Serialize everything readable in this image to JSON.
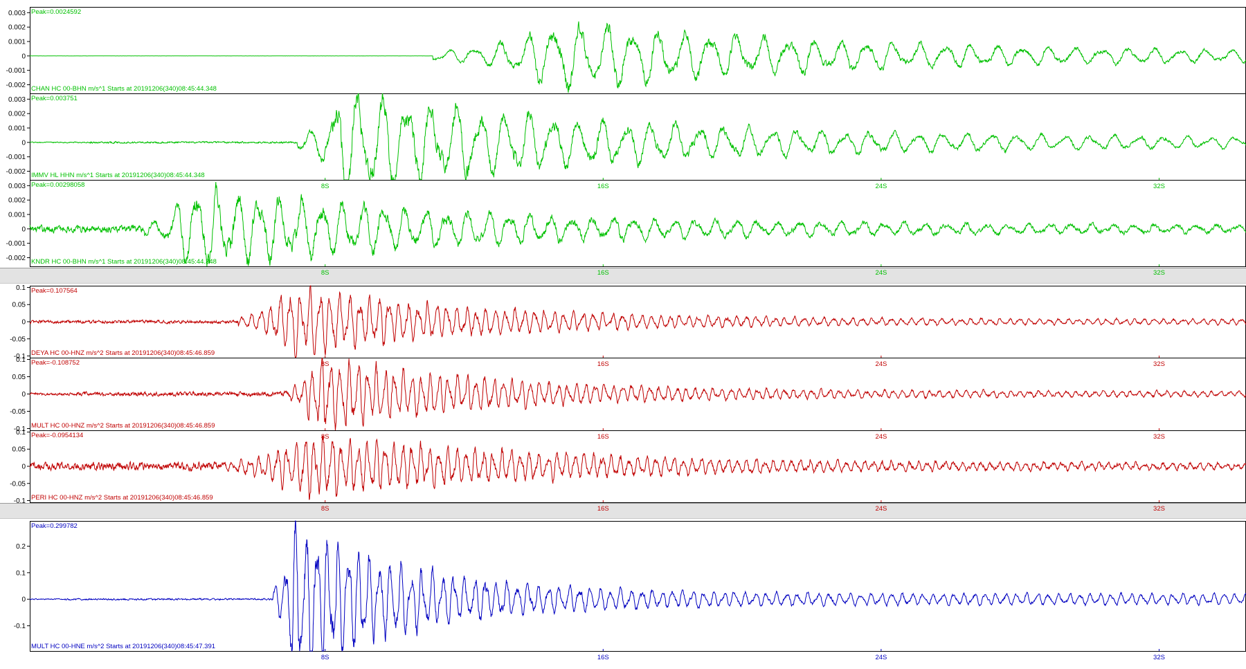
{
  "time_axis": {
    "unit": "S",
    "ticks": [
      8,
      16,
      24,
      32
    ],
    "tick_labels": [
      "8S",
      "16S",
      "24S",
      "32S"
    ]
  },
  "colors": {
    "group1": "#00c000",
    "group2": "#c00000",
    "group3": "#0000c0",
    "axis": "#000000"
  },
  "chart_data": [
    {
      "type": "line",
      "group": 1,
      "station": "CHAN HC 00-BHN  m/s^1 Starts at 20191206(340)08:45:44.348",
      "peak": "Peak=0.0024592",
      "peak_value": 0.0024592,
      "ylim": [
        -0.0026,
        0.0034
      ],
      "yticks": [
        0.003,
        0.002,
        0.001,
        0,
        -0.001,
        -0.002
      ],
      "ytick_labels": [
        "0.003",
        "0.002",
        "0.001",
        "0",
        "-0.001",
        "-0.002"
      ],
      "xlim": [
        -1.0,
        34.0
      ],
      "onset_s": 10.6,
      "peak_time_s": 14.3,
      "noise_level": 5e-05,
      "amplitude": 0.0024592,
      "decay_s": 9.0,
      "period_s": 0.75,
      "show_time_labels": false
    },
    {
      "type": "line",
      "group": 1,
      "station": "IMMV HL HHN  m/s^1 Starts at 20191206(340)08:45:44.348",
      "peak": "Peak=0.003751",
      "peak_value": 0.003751,
      "ylim": [
        -0.0026,
        0.0034
      ],
      "yticks": [
        0.003,
        0.002,
        0.001,
        0,
        -0.001,
        -0.002
      ],
      "ytick_labels": [
        "0.003",
        "0.002",
        "0.001",
        "0",
        "-0.001",
        "-0.002"
      ],
      "xlim": [
        -0.5,
        34.5
      ],
      "onset_s": 7.2,
      "peak_time_s": 8.5,
      "noise_level": 0.0001,
      "amplitude": 0.003751,
      "decay_s": 8.0,
      "period_s": 0.7,
      "show_time_labels": true
    },
    {
      "type": "line",
      "group": 1,
      "station": "KNDR HC 00-BHN  m/s^1 Starts at 20191206(340)08:45:44.348",
      "peak": "Peak=0.00298058",
      "peak_value": 0.00298058,
      "ylim": [
        -0.0026,
        0.0034
      ],
      "yticks": [
        0.003,
        0.002,
        0.001,
        0,
        -0.001,
        -0.002
      ],
      "ytick_labels": [
        "0.003",
        "0.002",
        "0.001",
        "0",
        "-0.001",
        "-0.002"
      ],
      "xlim": [
        -0.5,
        34.5
      ],
      "onset_s": 2.8,
      "peak_time_s": 4.2,
      "noise_level": 0.0004,
      "amplitude": 0.00298058,
      "decay_s": 8.0,
      "period_s": 0.6,
      "show_time_labels": true
    },
    {
      "type": "line",
      "group": 2,
      "station": "DEYA HC 00-HNZ  m/s^2 Starts at 20191206(340)08:45:46.859",
      "peak": "Peak=0.107564",
      "peak_value": 0.107564,
      "ylim": [
        -0.105,
        0.105
      ],
      "yticks": [
        0.1,
        0.05,
        0,
        -0.05,
        -0.1
      ],
      "ytick_labels": [
        "0.1",
        "0.05",
        "0",
        "-0.05",
        "-0.1"
      ],
      "xlim": [
        -0.5,
        34.5
      ],
      "onset_s": 5.5,
      "peak_time_s": 7.0,
      "noise_level": 0.008,
      "amplitude": 0.107564,
      "decay_s": 5.0,
      "period_s": 0.28,
      "show_time_labels": true
    },
    {
      "type": "line",
      "group": 2,
      "station": "MULT HC 00-HNZ  m/s^2 Starts at 20191206(340)08:45:46.859",
      "peak": "Peak=-0.108752",
      "peak_value": -0.108752,
      "ylim": [
        -0.105,
        0.105
      ],
      "yticks": [
        0.1,
        0.05,
        0,
        -0.05,
        -0.1
      ],
      "ytick_labels": [
        "0.1",
        "0.05",
        "0",
        "-0.05",
        "-0.1"
      ],
      "xlim": [
        -0.5,
        34.5
      ],
      "onset_s": 6.8,
      "peak_time_s": 7.8,
      "noise_level": 0.01,
      "amplitude": 0.108752,
      "decay_s": 5.0,
      "period_s": 0.26,
      "show_time_labels": true
    },
    {
      "type": "line",
      "group": 2,
      "station": "PERI HC 00-HNZ  m/s^2 Starts at 20191206(340)08:45:46.859",
      "peak": "Peak=-0.0954134",
      "peak_value": -0.0954134,
      "ylim": [
        -0.105,
        0.105
      ],
      "yticks": [
        0.1,
        0.05,
        0,
        -0.05,
        -0.1
      ],
      "ytick_labels": [
        "0.1",
        "0.05",
        "0",
        "-0.05",
        "-0.1"
      ],
      "xlim": [
        -0.5,
        34.5
      ],
      "onset_s": 5.0,
      "peak_time_s": 7.4,
      "noise_level": 0.018,
      "amplitude": 0.0954134,
      "decay_s": 7.0,
      "period_s": 0.26,
      "show_time_labels": true
    },
    {
      "type": "line",
      "group": 3,
      "station": "MULT HC 00-HNE  m/s^2 Starts at 20191206(340)08:45:47.391",
      "peak": "Peak=0.299782",
      "peak_value": 0.299782,
      "ylim": [
        -0.195,
        0.295
      ],
      "yticks": [
        0.2,
        0.1,
        0,
        -0.1
      ],
      "ytick_labels": [
        "0.2",
        "0.1",
        "0",
        "-0.1"
      ],
      "xlim": [
        -0.5,
        34.5
      ],
      "onset_s": 6.5,
      "peak_time_s": 7.1,
      "noise_level": 0.005,
      "amplitude": 0.299782,
      "decay_s": 3.5,
      "period_s": 0.3,
      "show_time_labels": true
    }
  ]
}
